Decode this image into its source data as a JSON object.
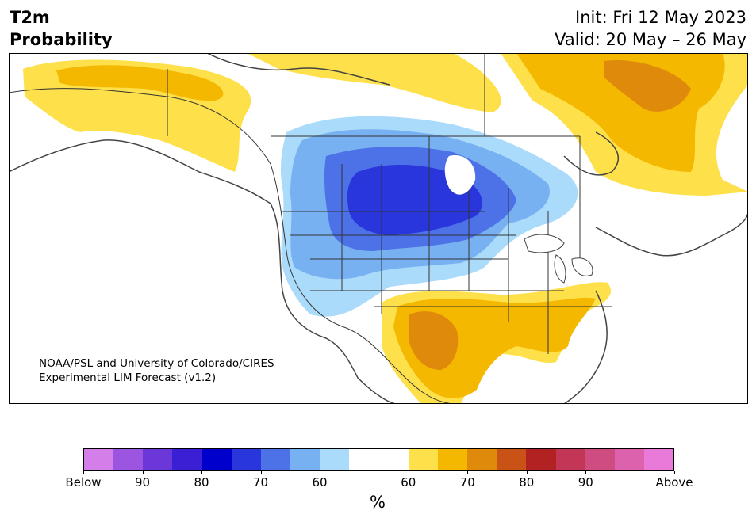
{
  "header": {
    "variable": "T2m",
    "product": "Probability",
    "init": "Init: Fri 12 May 2023",
    "valid": "Valid: 20 May – 26 May"
  },
  "credit": {
    "line1": "NOAA/PSL and University of Colorado/CIRES",
    "line2": "Experimental LIM Forecast (v1.2)"
  },
  "colorbar": {
    "colors": [
      "#d37ee9",
      "#9b55e1",
      "#6c37d8",
      "#3a1fd4",
      "#0000cc",
      "#2836dc",
      "#4d72e8",
      "#77b1f2",
      "#abdbfb",
      "#ffffff",
      "#ffffff",
      "#fde04a",
      "#f5b800",
      "#e08a0b",
      "#c95317",
      "#b22222",
      "#c43655",
      "#cf4c80",
      "#dc62ae",
      "#e97ad9"
    ],
    "labels": [
      "Below",
      "90",
      "80",
      "70",
      "60",
      "60",
      "70",
      "80",
      "90",
      "Above"
    ],
    "unit": "%"
  },
  "map": {
    "regions": [
      {
        "name": "cold-60",
        "color": "#abdbfb"
      },
      {
        "name": "cold-70",
        "color": "#77b1f2"
      },
      {
        "name": "cold-80",
        "color": "#4d72e8"
      },
      {
        "name": "cold-90",
        "color": "#2836dc"
      },
      {
        "name": "warm-60",
        "color": "#fde04a"
      },
      {
        "name": "warm-70",
        "color": "#f5b800"
      },
      {
        "name": "warm-80",
        "color": "#e08a0b"
      }
    ]
  }
}
